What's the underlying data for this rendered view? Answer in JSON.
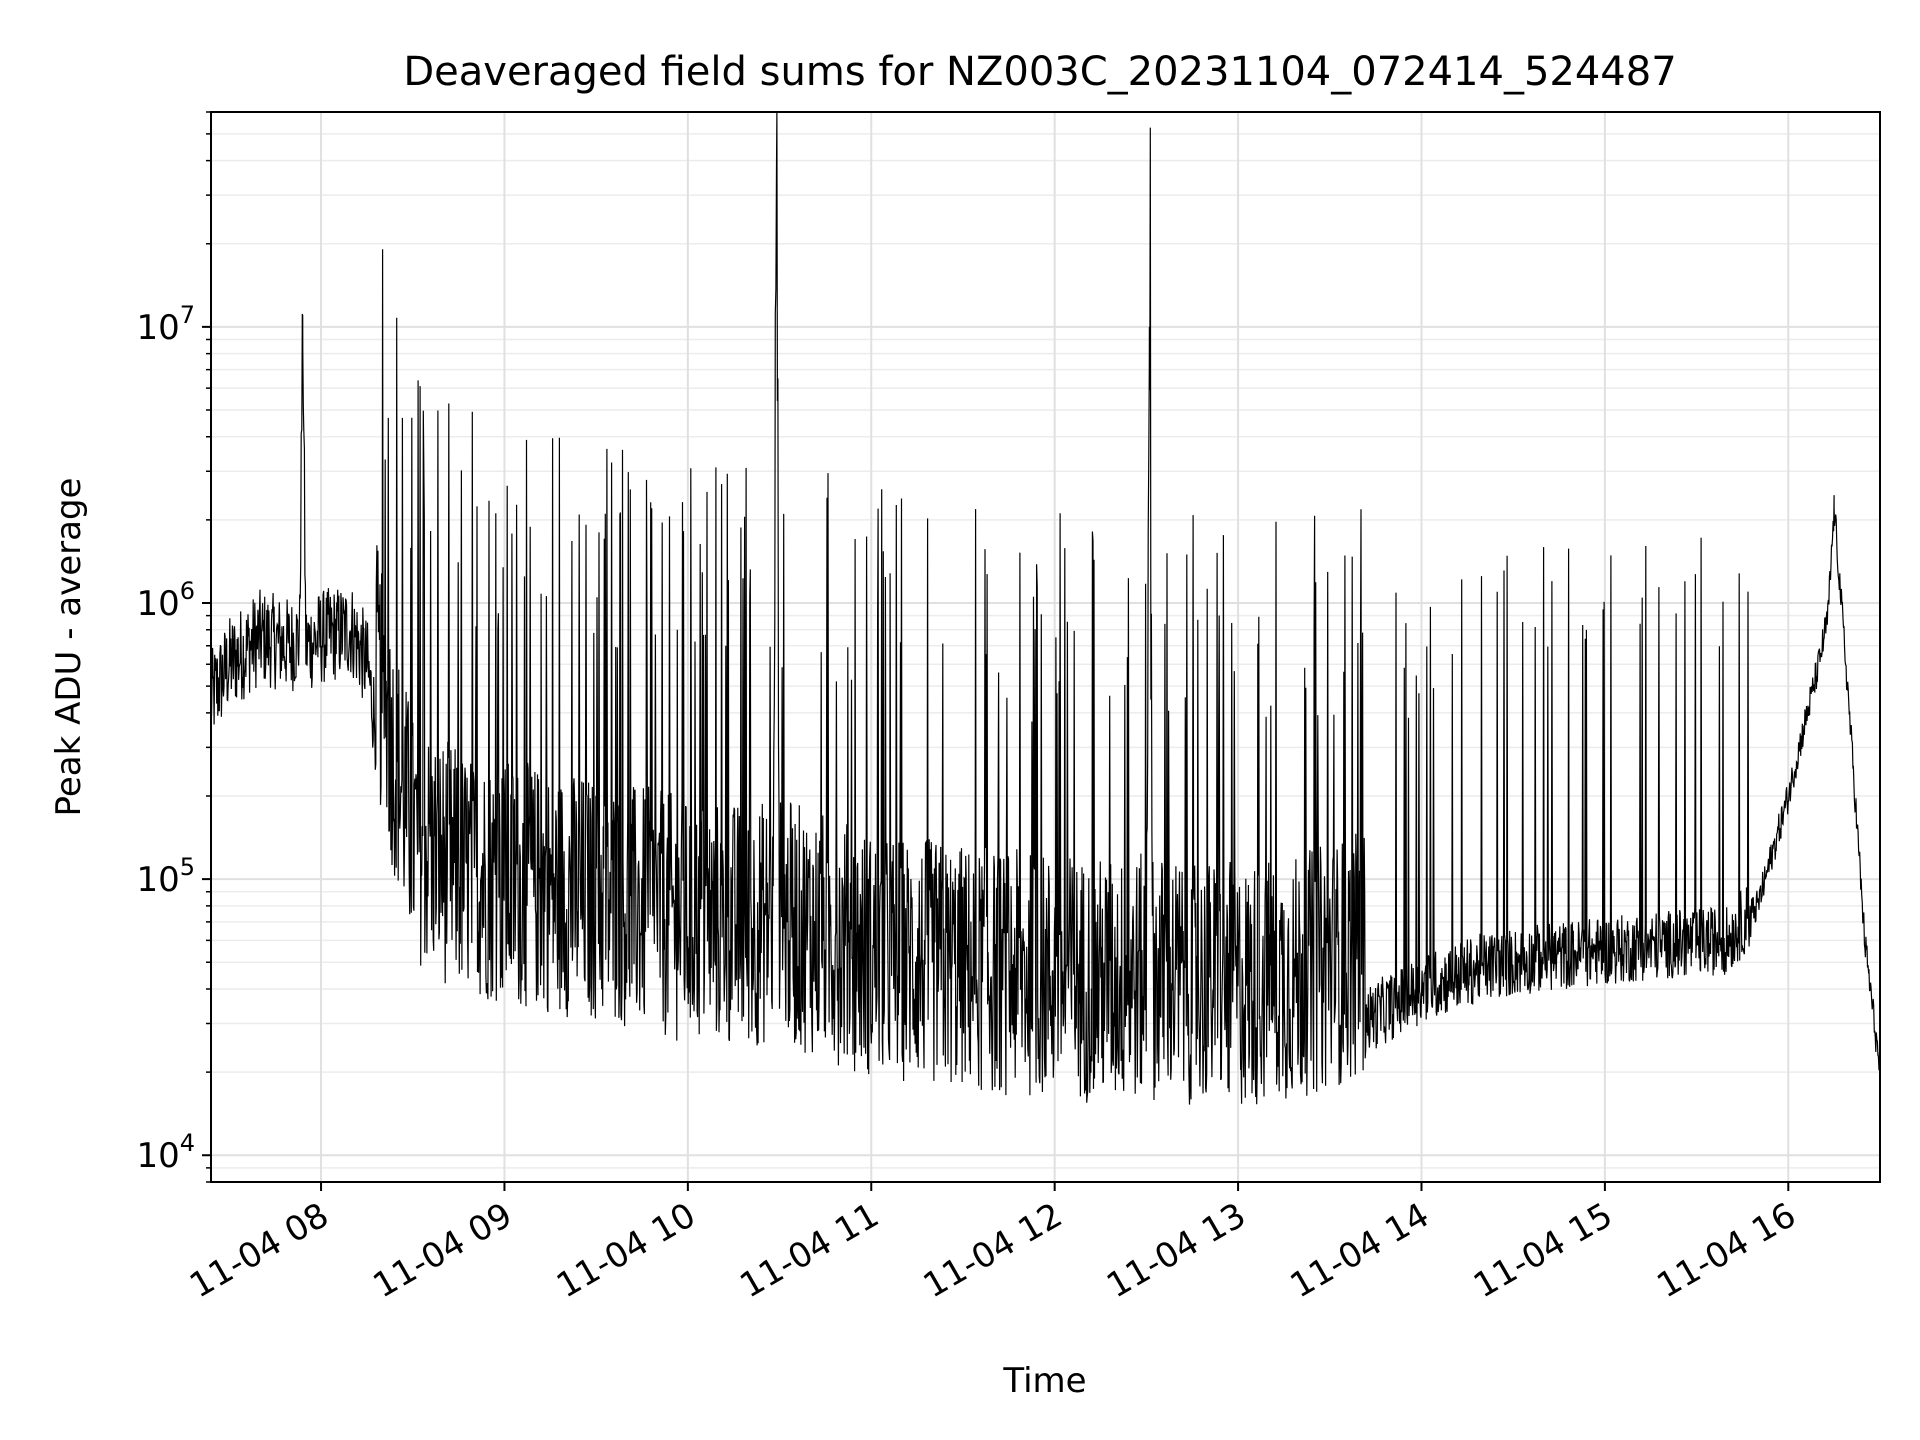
{
  "chart_data": {
    "type": "line",
    "title": "Deaveraged field sums for NZ003C_20231104_072414_524487",
    "xlabel": "Time",
    "ylabel": "Peak ADU - average",
    "yscale": "log",
    "ylim": [
      8000,
      60000000
    ],
    "xlim": [
      "2023-11-04T07:24",
      "2023-11-04T16:30"
    ],
    "grid": true,
    "x_tick_labels": [
      "11-04 08",
      "11-04 09",
      "11-04 10",
      "11-04 11",
      "11-04 12",
      "11-04 13",
      "11-04 14",
      "11-04 15",
      "11-04 16"
    ],
    "y_tick_labels": [
      {
        "base": "10",
        "exp": "4"
      },
      {
        "base": "10",
        "exp": "5"
      },
      {
        "base": "10",
        "exp": "6"
      },
      {
        "base": "10",
        "exp": "7"
      }
    ],
    "line_color": "#000000",
    "series": [
      {
        "x": [
          "2023-11-04T07:24",
          "2023-11-04T07:30",
          "2023-11-04T07:40",
          "2023-11-04T07:50",
          "2023-11-04T07:53",
          "2023-11-04T07:54",
          "2023-11-04T07:55",
          "2023-11-04T08:00",
          "2023-11-04T08:10",
          "2023-11-04T08:15",
          "2023-11-04T08:20",
          "2023-11-04T08:30",
          "2023-11-04T08:45",
          "2023-11-04T09:00",
          "2023-11-04T09:20",
          "2023-11-04T09:40",
          "2023-11-04T10:00",
          "2023-11-04T10:20",
          "2023-11-04T10:28",
          "2023-11-04T10:29",
          "2023-11-04T10:30",
          "2023-11-04T10:45",
          "2023-11-04T11:00",
          "2023-11-04T11:20",
          "2023-11-04T11:40",
          "2023-11-04T12:00",
          "2023-11-04T12:20",
          "2023-11-04T12:30",
          "2023-11-04T12:31",
          "2023-11-04T12:32",
          "2023-11-04T12:45",
          "2023-11-04T13:00",
          "2023-11-04T13:20",
          "2023-11-04T13:40",
          "2023-11-04T14:00",
          "2023-11-04T14:20",
          "2023-11-04T14:40",
          "2023-11-04T15:00",
          "2023-11-04T15:20",
          "2023-11-04T15:40",
          "2023-11-04T15:50",
          "2023-11-04T16:00",
          "2023-11-04T16:05",
          "2023-11-04T16:10",
          "2023-11-04T16:13",
          "2023-11-04T16:15",
          "2023-11-04T16:18",
          "2023-11-04T16:20",
          "2023-11-04T16:25",
          "2023-11-04T16:30"
        ],
        "y": [
          450000,
          600000,
          750000,
          700000,
          750000,
          11000000,
          700000,
          750000,
          800000,
          600000,
          250000,
          80000,
          60000,
          55000,
          50000,
          45000,
          40000,
          38000,
          40000,
          38000000,
          40000,
          35000,
          30000,
          28000,
          26000,
          25000,
          24000,
          25000,
          10000000,
          25000,
          24000,
          23000,
          25000,
          30000,
          40000,
          48000,
          52000,
          55000,
          58000,
          60000,
          80000,
          200000,
          350000,
          600000,
          900000,
          2200000,
          800000,
          400000,
          60000,
          20000
        ]
      }
    ]
  }
}
